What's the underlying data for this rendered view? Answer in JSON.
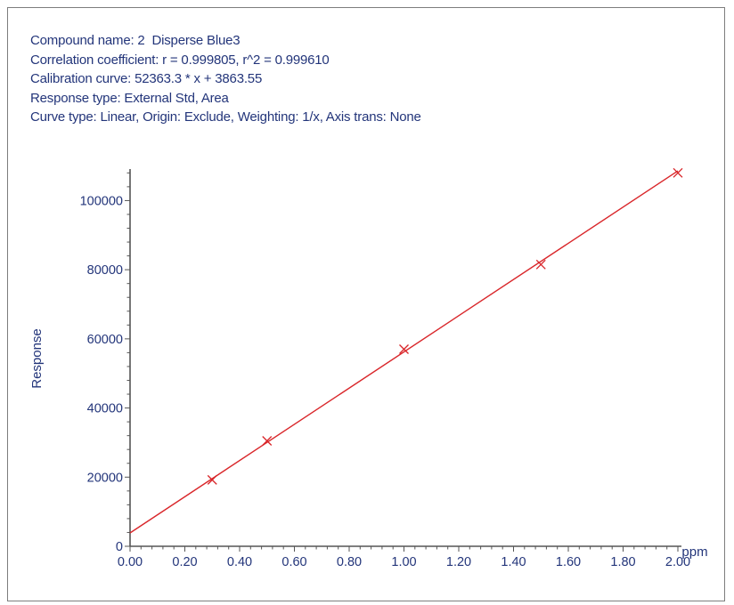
{
  "header": {
    "compound": "Compound name: 2  Disperse Blue3",
    "correlation": "Correlation coefficient: r = 0.999805, r^2 = 0.999610",
    "calibration": "Calibration curve: 52363.3 * x + 3863.55",
    "response_type": "Response type: External Std, Area",
    "curve_type": "Curve type: Linear, Origin: Exclude, Weighting: 1/x, Axis trans: None"
  },
  "colors": {
    "text": "#23357a",
    "axis": "#555555",
    "line": "#d9262a",
    "marker": "#d9262a"
  },
  "chart_data": {
    "type": "scatter",
    "title": "",
    "xlabel": "ppm",
    "ylabel": "Response",
    "xlim": [
      0,
      2.0
    ],
    "ylim": [
      0,
      105000
    ],
    "x_ticks": [
      "0.00",
      "0.20",
      "0.40",
      "0.60",
      "0.80",
      "1.00",
      "1.20",
      "1.40",
      "1.60",
      "1.80",
      "2.00"
    ],
    "x_tick_values": [
      0,
      0.2,
      0.4,
      0.6,
      0.8,
      1.0,
      1.2,
      1.4,
      1.6,
      1.8,
      2.0
    ],
    "y_ticks": [
      "0",
      "20000",
      "40000",
      "60000",
      "80000",
      "100000"
    ],
    "y_tick_values": [
      0,
      20000,
      40000,
      60000,
      80000,
      100000
    ],
    "grid": false,
    "series": [
      {
        "type": "scatter",
        "marker": "x",
        "points": [
          {
            "x": 0.3,
            "y": 19200
          },
          {
            "x": 0.5,
            "y": 30500
          },
          {
            "x": 1.0,
            "y": 57000
          },
          {
            "x": 1.5,
            "y": 81500
          },
          {
            "x": 2.0,
            "y": 108000
          }
        ]
      }
    ],
    "fit": {
      "type": "line",
      "slope": 52363.3,
      "intercept": 3863.55,
      "x_range": [
        0,
        2.0
      ]
    }
  }
}
